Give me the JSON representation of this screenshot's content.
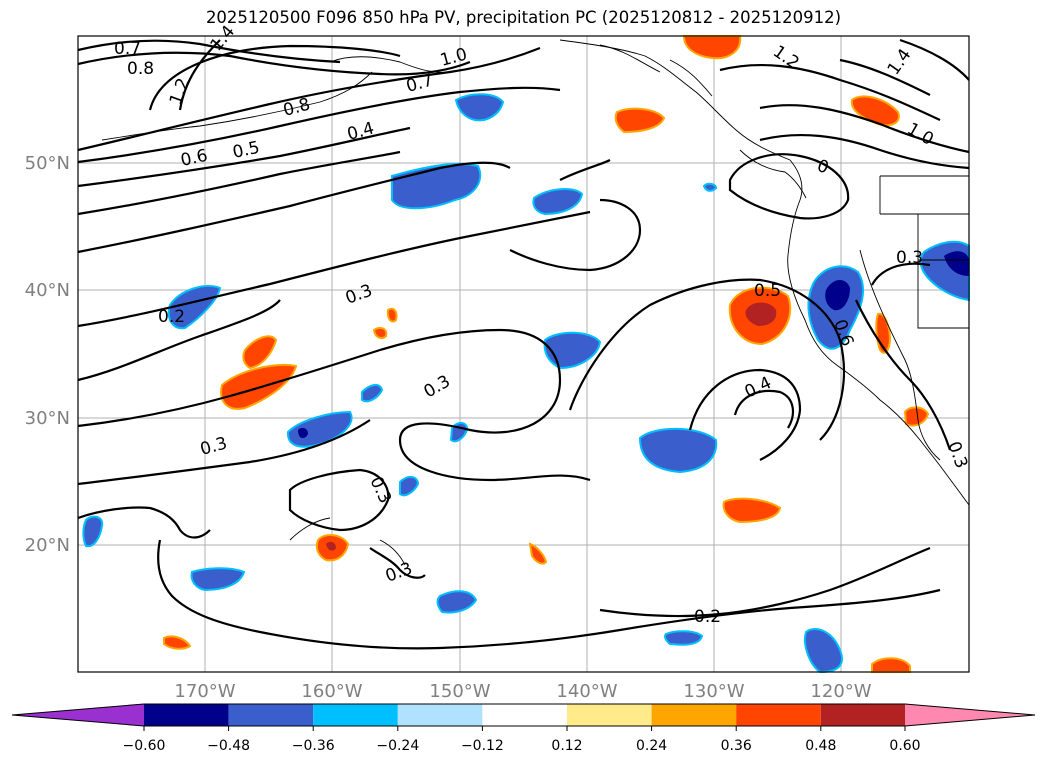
{
  "title": "2025120500 F096 850 hPa PV, precipitation PC (2025120812 - 2025120912)",
  "longitude_labels": [
    "170°W",
    "160°W",
    "150°W",
    "140°W",
    "130°W",
    "120°W"
  ],
  "latitude_labels": [
    "50°N",
    "40°N",
    "30°N",
    "20°N"
  ],
  "colorbar": {
    "tick_labels": [
      "−0.60",
      "−0.48",
      "−0.36",
      "−0.24",
      "−0.12",
      "0.12",
      "0.24",
      "0.36",
      "0.48",
      "0.60"
    ],
    "colors": [
      "#9b30d0",
      "#00008b",
      "#3a5fcd",
      "#00bfff",
      "#b0e2ff",
      "#ffffff",
      "#ffeb8a",
      "#ffa500",
      "#ff4500",
      "#b22222",
      "#ff88b0"
    ]
  },
  "contour_labels": [
    "0.7",
    "0.8",
    "1.2",
    "1.4",
    "0.8",
    "0.7",
    "1.0",
    "1.2",
    "1.4",
    "0.6",
    "0.5",
    "0.4",
    "1.0",
    "0",
    "0.3",
    "0.3",
    "0.2",
    "0.5",
    "0.6",
    "0.3",
    "0.4",
    "0.3",
    "0.3",
    "0.3",
    "0.2",
    "0.3"
  ],
  "colors": {
    "neg_dark": "#00008b",
    "neg_mid": "#3a5fcd",
    "neg_light": "#00bfff",
    "pos_light": "#ffa500",
    "pos_mid": "#ff4500",
    "pos_dark": "#b22222"
  }
}
